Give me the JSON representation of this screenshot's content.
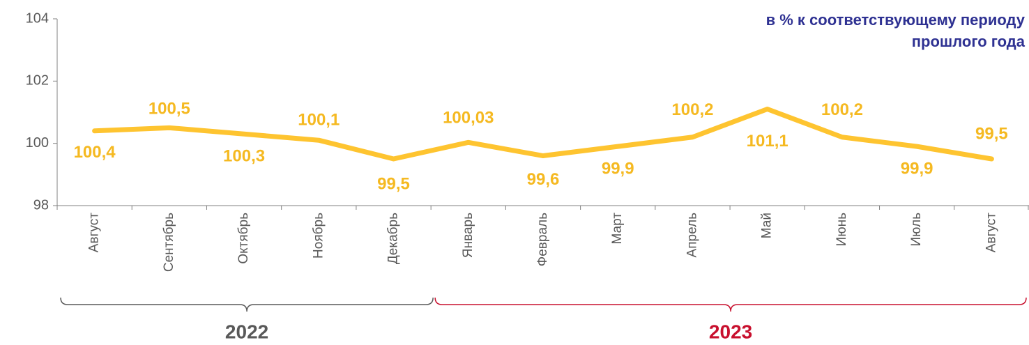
{
  "chart_data": {
    "type": "line",
    "annotation": [
      "в % к соответствующему периоду",
      "прошлого года"
    ],
    "categories": [
      "Август",
      "Сентябрь",
      "Октябрь",
      "Ноябрь",
      "Декабрь",
      "Январь",
      "Февраль",
      "Март",
      "Апрель",
      "Май",
      "Июнь",
      "Июль",
      "Август"
    ],
    "series": [
      {
        "name": null,
        "color": "#fec430",
        "values": [
          100.4,
          100.5,
          100.3,
          100.1,
          99.5,
          100.03,
          99.6,
          99.9,
          100.2,
          101.1,
          100.2,
          99.9,
          99.5
        ],
        "value_labels": [
          "100,4",
          "100,5",
          "100,3",
          "100,1",
          "99,5",
          "100,03",
          "99,6",
          "99,9",
          "100,2",
          "101,1",
          "100,2",
          "99,9",
          "99,5"
        ]
      }
    ],
    "ylim": [
      98,
      104
    ],
    "yticks": [
      98,
      100,
      102,
      104
    ],
    "groups": [
      {
        "label": "2022",
        "color": "#595959"
      },
      {
        "label": "2023",
        "color": "#c8102e"
      }
    ]
  }
}
